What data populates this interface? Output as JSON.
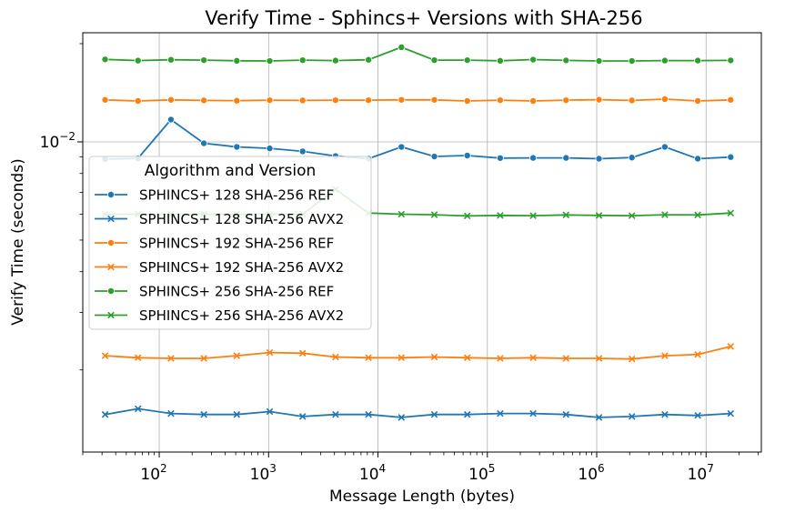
{
  "chart_data": {
    "type": "line",
    "title": "Verify Time - Sphincs+ Versions with SHA-256",
    "xlabel": "Message Length (bytes)",
    "ylabel": "Verify Time (seconds)",
    "x_scale": "log",
    "y_scale": "log",
    "grid": true,
    "xlim": [
      20,
      32000000
    ],
    "ylim": [
      0.00112,
      0.0216
    ],
    "x_ticks": [
      {
        "value": 100,
        "base": "10",
        "exp": "2"
      },
      {
        "value": 1000,
        "base": "10",
        "exp": "3"
      },
      {
        "value": 10000,
        "base": "10",
        "exp": "4"
      },
      {
        "value": 100000,
        "base": "10",
        "exp": "5"
      },
      {
        "value": 1000000,
        "base": "10",
        "exp": "6"
      },
      {
        "value": 10000000,
        "base": "10",
        "exp": "7"
      }
    ],
    "y_ticks": [
      {
        "value": 0.01,
        "base": "10",
        "exp": "−2"
      }
    ],
    "x": [
      32,
      64,
      128,
      256,
      512,
      1024,
      2048,
      4096,
      8192,
      16384,
      32768,
      65536,
      131072,
      262144,
      524288,
      1048576,
      2097152,
      4194304,
      8388608,
      16777216
    ],
    "legend": {
      "title": "Algorithm and Version",
      "placement": "center-left"
    },
    "series": [
      {
        "name": "SPHINCS+ 128 SHA-256 REF",
        "color": "#1f77b4",
        "marker": "circle",
        "values": [
          0.00885,
          0.0089,
          0.0117,
          0.0099,
          0.00965,
          0.00955,
          0.00935,
          0.00905,
          0.00888,
          0.00965,
          0.00902,
          0.00908,
          0.00892,
          0.00893,
          0.00893,
          0.00888,
          0.00895,
          0.00965,
          0.00888,
          0.00898
        ]
      },
      {
        "name": "SPHINCS+ 128 SHA-256 AVX2",
        "color": "#1f77b4",
        "marker": "x",
        "values": [
          0.00146,
          0.00152,
          0.00147,
          0.00146,
          0.00146,
          0.00149,
          0.00144,
          0.00146,
          0.00146,
          0.00143,
          0.00146,
          0.00146,
          0.00147,
          0.00147,
          0.00146,
          0.00143,
          0.00144,
          0.00146,
          0.00145,
          0.00147
        ]
      },
      {
        "name": "SPHINCS+ 192 SHA-256 REF",
        "color": "#ff7f0e",
        "marker": "circle",
        "values": [
          0.01345,
          0.01335,
          0.01345,
          0.0134,
          0.01337,
          0.01342,
          0.0134,
          0.01342,
          0.01342,
          0.01345,
          0.01345,
          0.01335,
          0.01342,
          0.01335,
          0.01342,
          0.01347,
          0.0134,
          0.01352,
          0.01335,
          0.01345
        ]
      },
      {
        "name": "SPHINCS+ 192 SHA-256 AVX2",
        "color": "#ff7f0e",
        "marker": "x",
        "values": [
          0.00221,
          0.00218,
          0.00217,
          0.00217,
          0.00221,
          0.00226,
          0.00225,
          0.00219,
          0.00218,
          0.00218,
          0.00219,
          0.00218,
          0.00217,
          0.00218,
          0.00217,
          0.00217,
          0.00216,
          0.00221,
          0.00223,
          0.00236
        ]
      },
      {
        "name": "SPHINCS+ 256 SHA-256 REF",
        "color": "#2ca02c",
        "marker": "circle",
        "values": [
          0.0179,
          0.01775,
          0.01785,
          0.0178,
          0.01772,
          0.0177,
          0.0178,
          0.01775,
          0.01785,
          0.0195,
          0.0178,
          0.0178,
          0.01772,
          0.01787,
          0.01777,
          0.0177,
          0.0177,
          0.01775,
          0.01775,
          0.01777
        ]
      },
      {
        "name": "SPHINCS+ 256 SHA-256 AVX2",
        "color": "#2ca02c",
        "marker": "x",
        "values": [
          0.006,
          0.006,
          0.006,
          0.006,
          0.006,
          0.006,
          0.006,
          0.00715,
          0.00605,
          0.006,
          0.00598,
          0.00593,
          0.00595,
          0.00594,
          0.00597,
          0.00595,
          0.00594,
          0.00598,
          0.00597,
          0.00605
        ]
      }
    ]
  }
}
